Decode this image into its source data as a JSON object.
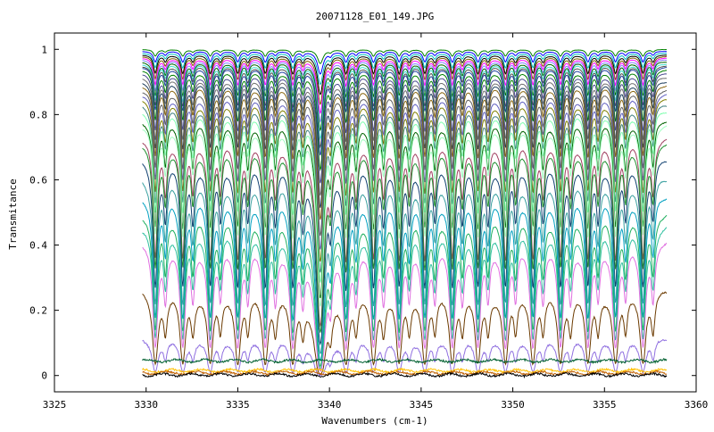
{
  "chart_data": {
    "type": "line",
    "title": "20071128_E01_149.JPG",
    "xlabel": "Wavenumbers (cm-1)",
    "ylabel": "Transmitance",
    "xlim": [
      3325,
      3360
    ],
    "ylim": [
      -0.05,
      1.05
    ],
    "x_ticks": [
      3325,
      3330,
      3335,
      3340,
      3345,
      3350,
      3355,
      3360
    ],
    "y_ticks": [
      0,
      0.2,
      0.4,
      0.6,
      0.8,
      1
    ],
    "x_tick_labels": [
      "3325",
      "3330",
      "3335",
      "3340",
      "3345",
      "3350",
      "3355",
      "3360"
    ],
    "y_tick_labels": [
      "0",
      "0.2",
      "0.4",
      "0.6",
      "0.8",
      "1"
    ],
    "x_range": [
      3329.8,
      3358.4
    ],
    "grid": false,
    "legend": "none",
    "absorption_lines_cm1": [
      3330.5,
      3332.0,
      3333.5,
      3335.0,
      3336.5,
      3338.0,
      3339.5,
      3340.9,
      3342.4,
      3343.8,
      3345.2,
      3346.7,
      3348.1,
      3349.6,
      3351.1,
      3352.6,
      3354.1,
      3355.6,
      3357.1
    ],
    "series": [
      {
        "color": "#008000",
        "baseline": 1.0
      },
      {
        "color": "#0000ff",
        "baseline": 0.995
      },
      {
        "color": "#00bfbf",
        "baseline": 0.99
      },
      {
        "color": "#000000",
        "baseline": 0.985
      },
      {
        "color": "#7f6000",
        "baseline": 0.98
      },
      {
        "color": "#ff00ff",
        "baseline": 0.975
      },
      {
        "color": "#8080ff",
        "baseline": 0.97
      },
      {
        "color": "#006400",
        "baseline": 0.965
      },
      {
        "color": "#40e0d0",
        "baseline": 0.96
      },
      {
        "color": "#505050",
        "baseline": 0.955
      },
      {
        "color": "#2040a0",
        "baseline": 0.95
      },
      {
        "color": "#008000",
        "baseline": 0.94
      },
      {
        "color": "#4a4a90",
        "baseline": 0.93
      },
      {
        "color": "#707070",
        "baseline": 0.92
      },
      {
        "color": "#204060",
        "baseline": 0.91
      },
      {
        "color": "#8b6914",
        "baseline": 0.9
      },
      {
        "color": "#606060",
        "baseline": 0.885
      },
      {
        "color": "#6060c0",
        "baseline": 0.87
      },
      {
        "color": "#7f7f00",
        "baseline": 0.855
      },
      {
        "color": "#408080",
        "baseline": 0.84
      },
      {
        "color": "#80ffb0",
        "baseline": 0.825
      },
      {
        "color": "#006400",
        "baseline": 0.8
      },
      {
        "color": "#a0ffc0",
        "baseline": 0.785
      },
      {
        "color": "#a04060",
        "baseline": 0.74
      },
      {
        "color": "#209030",
        "baseline": 0.72
      },
      {
        "color": "#104070",
        "baseline": 0.675
      },
      {
        "color": "#3aa0a0",
        "baseline": 0.625
      },
      {
        "color": "#00a0c0",
        "baseline": 0.575
      },
      {
        "color": "#20b060",
        "baseline": 0.52
      },
      {
        "color": "#30c0a0",
        "baseline": 0.475
      },
      {
        "color": "#e070e0",
        "baseline": 0.42
      },
      {
        "color": "#6b3a00",
        "baseline": 0.27
      },
      {
        "color": "#9070e0",
        "baseline": 0.12
      },
      {
        "color": "#006030",
        "baseline": 0.045
      },
      {
        "color": "#ffc000",
        "baseline": 0.015
      },
      {
        "color": "#c06000",
        "baseline": 0.008
      },
      {
        "color": "#000000",
        "baseline": 0.002
      }
    ]
  }
}
